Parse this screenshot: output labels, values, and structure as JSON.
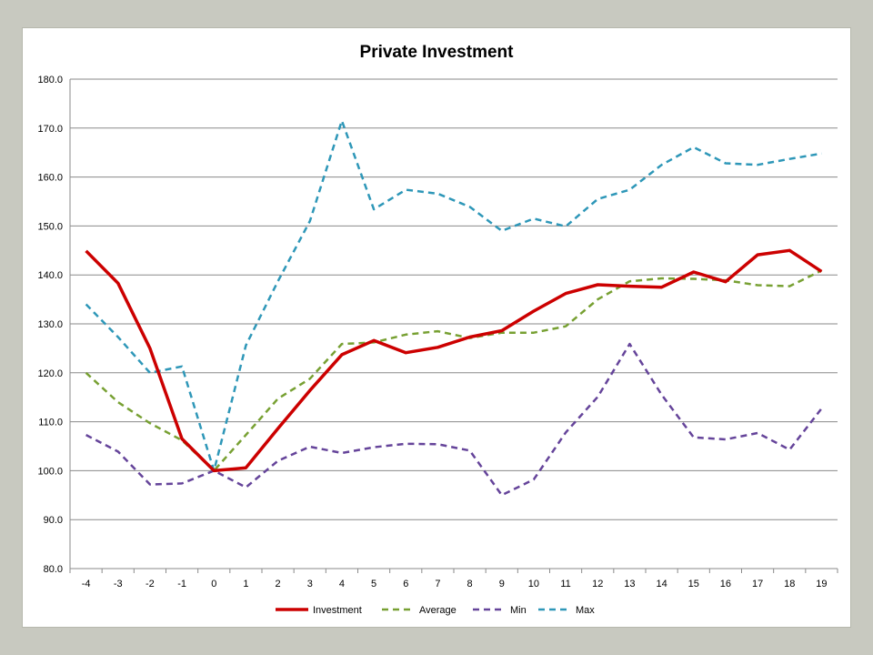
{
  "chart_data": {
    "type": "line",
    "title": "Private Investment",
    "xlabel": "",
    "ylabel": "",
    "x": [
      -4,
      -3,
      -2,
      -1,
      0,
      1,
      2,
      3,
      4,
      5,
      6,
      7,
      8,
      9,
      10,
      11,
      12,
      13,
      14,
      15,
      16,
      17,
      18,
      19
    ],
    "ylim": [
      80,
      180
    ],
    "yticks": [
      "80.0",
      "90.0",
      "100.0",
      "110.0",
      "120.0",
      "130.0",
      "140.0",
      "150.0",
      "160.0",
      "170.0",
      "180.0"
    ],
    "grid": "horizontal",
    "legend_position": "bottom",
    "series": [
      {
        "name": "Investment",
        "color": "#cc0000",
        "dash": "solid",
        "values": [
          144.9,
          138.3,
          125.0,
          106.5,
          100.0,
          100.6,
          108.6,
          116.4,
          123.7,
          126.6,
          124.1,
          125.2,
          127.3,
          128.6,
          132.6,
          136.2,
          138.0,
          137.7,
          137.5,
          140.6,
          138.6,
          144.1,
          145.0,
          140.7
        ]
      },
      {
        "name": "Average",
        "color": "#77a032",
        "dash": "dashed",
        "values": [
          120.0,
          114.0,
          109.7,
          106.2,
          100.0,
          107.3,
          114.7,
          118.8,
          125.9,
          126.2,
          127.8,
          128.5,
          127.1,
          128.2,
          128.2,
          129.5,
          135.0,
          138.7,
          139.3,
          139.2,
          138.9,
          137.9,
          137.7,
          140.9
        ]
      },
      {
        "name": "Min",
        "color": "#65449a",
        "dash": "dashed",
        "values": [
          107.3,
          103.9,
          97.2,
          97.4,
          100.0,
          96.6,
          102.0,
          104.9,
          103.6,
          104.8,
          105.5,
          105.4,
          104.1,
          95.0,
          98.2,
          107.8,
          115.1,
          125.9,
          115.5,
          106.8,
          106.4,
          107.7,
          104.3,
          112.7
        ]
      },
      {
        "name": "Max",
        "color": "#2e97b8",
        "dash": "dashed",
        "values": [
          134.0,
          127.3,
          120.0,
          121.3,
          100.0,
          125.6,
          138.7,
          151.0,
          171.5,
          153.4,
          157.4,
          156.6,
          153.9,
          149.0,
          151.5,
          149.9,
          155.5,
          157.4,
          162.5,
          166.1,
          162.8,
          162.5,
          163.7,
          164.8
        ]
      }
    ]
  }
}
